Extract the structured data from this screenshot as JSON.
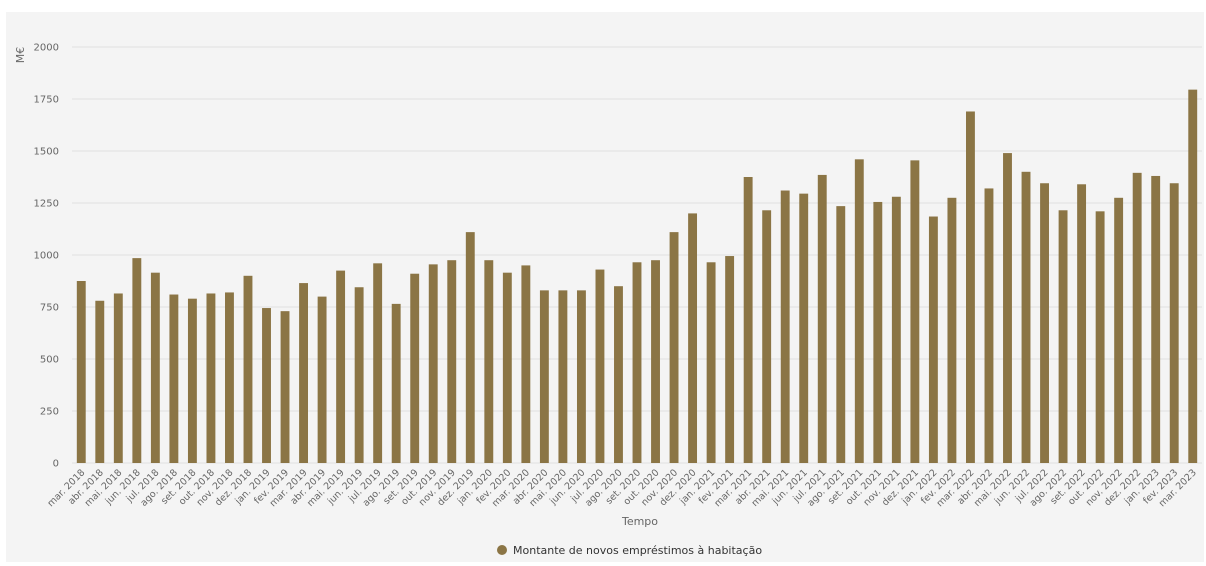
{
  "chart_data": {
    "type": "bar",
    "title": "",
    "ylabel": "M€",
    "xlabel": "Tempo",
    "ylim": [
      0,
      2000
    ],
    "yticks": [
      0,
      250,
      500,
      750,
      1000,
      1250,
      1500,
      1750,
      2000
    ],
    "grid": true,
    "legend_position": "bottom-center",
    "categories": [
      "mar. 2018",
      "abr. 2018",
      "mai. 2018",
      "jun. 2018",
      "jul. 2018",
      "ago. 2018",
      "set. 2018",
      "out. 2018",
      "nov. 2018",
      "dez. 2018",
      "jan. 2019",
      "fev. 2019",
      "mar. 2019",
      "abr. 2019",
      "mai. 2019",
      "jun. 2019",
      "jul. 2019",
      "ago. 2019",
      "set. 2019",
      "out. 2019",
      "nov. 2019",
      "dez. 2019",
      "jan. 2020",
      "fev. 2020",
      "mar. 2020",
      "abr. 2020",
      "mai. 2020",
      "jun. 2020",
      "jul. 2020",
      "ago. 2020",
      "set. 2020",
      "out. 2020",
      "nov. 2020",
      "dez. 2020",
      "jan. 2021",
      "fev. 2021",
      "mar. 2021",
      "abr. 2021",
      "mai. 2021",
      "jun. 2021",
      "jul. 2021",
      "ago. 2021",
      "set. 2021",
      "out. 2021",
      "nov. 2021",
      "dez. 2021",
      "jan. 2022",
      "fev. 2022",
      "mar. 2022",
      "abr. 2022",
      "mai. 2022",
      "jun. 2022",
      "jul. 2022",
      "ago. 2022",
      "set. 2022",
      "out. 2022",
      "nov. 2022",
      "dez. 2022",
      "jan. 2023",
      "fev. 2023",
      "mar. 2023"
    ],
    "series": [
      {
        "name": "Montante de novos empréstimos à habitação",
        "color": "#8b7545",
        "values": [
          875,
          780,
          815,
          985,
          915,
          810,
          790,
          815,
          820,
          900,
          745,
          730,
          865,
          800,
          925,
          845,
          960,
          765,
          910,
          955,
          975,
          1110,
          975,
          915,
          950,
          830,
          830,
          830,
          930,
          850,
          965,
          975,
          1110,
          1200,
          965,
          995,
          1375,
          1215,
          1310,
          1295,
          1385,
          1235,
          1460,
          1255,
          1280,
          1455,
          1185,
          1275,
          1690,
          1320,
          1490,
          1400,
          1345,
          1215,
          1340,
          1210,
          1275,
          1395,
          1380,
          1345,
          1795
        ]
      }
    ]
  }
}
